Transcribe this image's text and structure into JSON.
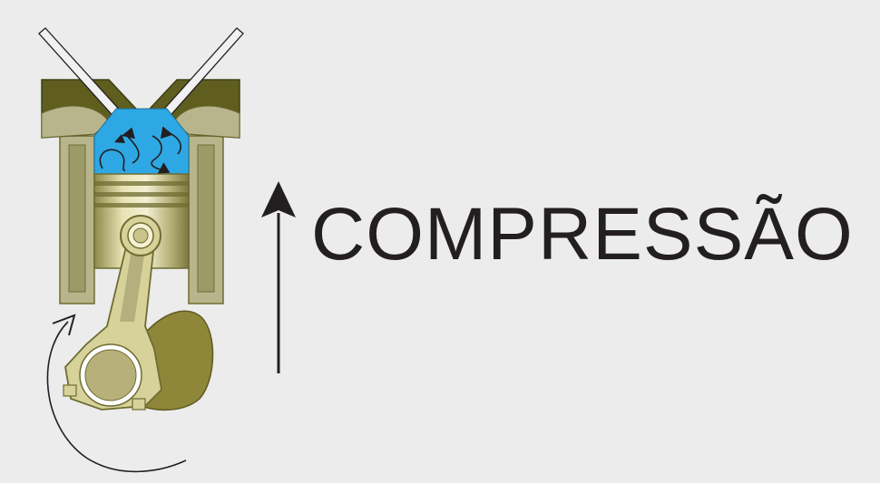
{
  "stroke": {
    "label": "COMPRESSÃO",
    "direction": "up"
  },
  "colors": {
    "background": "#ececec",
    "cylinder_head": "#5f5e1f",
    "cylinder_wall": "#b8b58c",
    "combustion_chamber": "#2ea8e4",
    "piston": "#c9c48a",
    "piston_ring": "#6f6c32",
    "connecting_rod": "#d6d29a",
    "crankshaft": "#8e8638",
    "outline": "#231f20"
  },
  "icons": {
    "stroke_arrow": "arrow-up-icon",
    "rotation_arrow": "curved-arrow-icon",
    "swirl_arrows": "swirl-arrows-icon"
  }
}
